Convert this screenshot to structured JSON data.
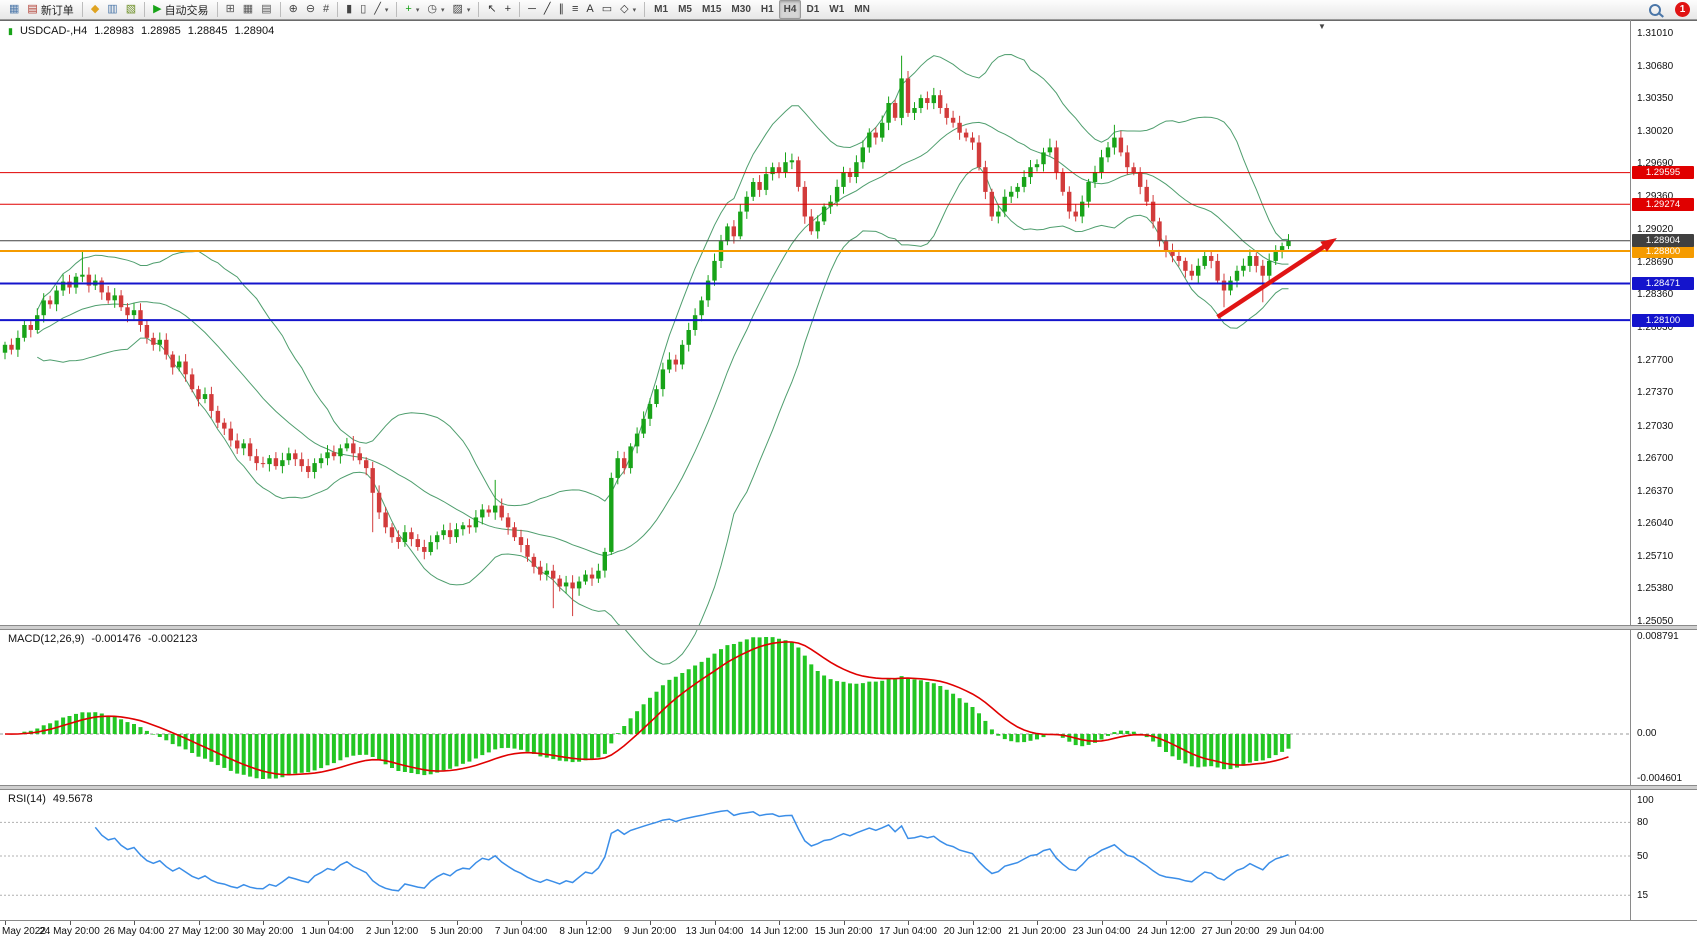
{
  "window": {
    "notification_count": "1"
  },
  "toolbar": {
    "groups": [
      {
        "items": [
          {
            "name": "chart-window-icon",
            "glyph": "▦",
            "color": "#4A76A8"
          },
          {
            "name": "new-order-button",
            "glyph": "▤",
            "color": "#B0392E",
            "label": "新订单"
          }
        ]
      },
      {
        "items": [
          {
            "name": "metaeditor-icon",
            "glyph": "◆",
            "color": "#DFA321"
          },
          {
            "name": "market-watch-icon",
            "glyph": "▥",
            "color": "#4A76A8"
          },
          {
            "name": "strategy-navigator-icon",
            "glyph": "▧",
            "color": "#6B8E23"
          }
        ]
      },
      {
        "items": [
          {
            "name": "auto-trading-button",
            "glyph": "▶",
            "color": "#17A317",
            "label": "自动交易"
          }
        ]
      },
      {
        "items": [
          {
            "name": "new-chart-icon",
            "glyph": "⊞",
            "color": "#555555"
          },
          {
            "name": "chart-tile-icon",
            "glyph": "▦",
            "color": "#555555"
          },
          {
            "name": "chart-cascade-icon",
            "glyph": "▤",
            "color": "#555555"
          }
        ]
      },
      {
        "items": [
          {
            "name": "zoom-in-icon",
            "glyph": "⊕",
            "color": "#444444"
          },
          {
            "name": "zoom-out-icon",
            "glyph": "⊖",
            "color": "#444444"
          },
          {
            "name": "grid-icon",
            "glyph": "#",
            "color": "#444444"
          }
        ]
      },
      {
        "items": [
          {
            "name": "bar-chart-icon",
            "glyph": "▮",
            "color": "#444444"
          },
          {
            "name": "candlestick-chart-icon",
            "glyph": "▯",
            "color": "#444444"
          },
          {
            "name": "line-chart-icon",
            "glyph": "╱",
            "color": "#444444",
            "dropdown": true
          }
        ]
      },
      {
        "items": [
          {
            "name": "indicators-icon",
            "glyph": "+",
            "color": "#17A317",
            "dropdown": true
          },
          {
            "name": "periods-icon",
            "glyph": "◷",
            "color": "#444444",
            "dropdown": true
          },
          {
            "name": "templates-icon",
            "glyph": "▨",
            "color": "#444444",
            "dropdown": true
          }
        ]
      },
      {
        "items": [
          {
            "name": "cursor-icon",
            "glyph": "↖",
            "color": "#333333"
          },
          {
            "name": "crosshair-icon",
            "glyph": "+",
            "color": "#333333"
          }
        ]
      },
      {
        "items": [
          {
            "name": "horizontal-line-icon",
            "glyph": "─",
            "color": "#333333"
          },
          {
            "name": "trendline-icon",
            "glyph": "╱",
            "color": "#333333"
          },
          {
            "name": "channel-icon",
            "glyph": "∥",
            "color": "#333333"
          },
          {
            "name": "fibonacci-icon",
            "glyph": "≡",
            "color": "#333333"
          },
          {
            "name": "text-icon",
            "glyph": "A",
            "color": "#333333"
          },
          {
            "name": "label-icon",
            "glyph": "▭",
            "color": "#333333"
          },
          {
            "name": "shapes-icon",
            "glyph": "◇",
            "color": "#333333",
            "dropdown": true
          }
        ]
      },
      {
        "items": [
          {
            "name": "timeframe-m1-button",
            "label": "M1",
            "tf": true
          },
          {
            "name": "timeframe-m5-button",
            "label": "M5",
            "tf": true
          },
          {
            "name": "timeframe-m15-button",
            "label": "M15",
            "tf": true
          },
          {
            "name": "timeframe-m30-button",
            "label": "M30",
            "tf": true
          },
          {
            "name": "timeframe-h1-button",
            "label": "H1",
            "tf": true
          },
          {
            "name": "timeframe-h4-button",
            "label": "H4",
            "tf": true,
            "active": true
          },
          {
            "name": "timeframe-d1-button",
            "label": "D1",
            "tf": true
          },
          {
            "name": "timeframe-w1-button",
            "label": "W1",
            "tf": true
          },
          {
            "name": "timeframe-mn-button",
            "label": "MN",
            "tf": true
          }
        ]
      }
    ]
  },
  "chart": {
    "header": {
      "icon_glyph": "▮",
      "symbol_period": "USDCAD-,H4",
      "open": "1.28983",
      "high": "1.28985",
      "low": "1.28845",
      "close": "1.28904"
    },
    "shift_marker_glyph": "▼",
    "price_axis": [
      "1.31010",
      "1.30680",
      "1.30350",
      "1.30020",
      "1.29690",
      "1.29360",
      "1.29020",
      "1.28690",
      "1.28360",
      "1.28030",
      "1.27700",
      "1.27370",
      "1.27030",
      "1.26700",
      "1.26370",
      "1.26040",
      "1.25710",
      "1.25380",
      "1.25050"
    ],
    "colors": {
      "up": "#18A318",
      "down": "#D23B3B",
      "bollinger": "#4F9E6E",
      "arrow": "#E01414"
    }
  },
  "macd": {
    "name": "MACD(12,26,9)",
    "value_main": "-0.001476",
    "value_signal": "-0.002123",
    "scale": {
      "max": "0.008791",
      "zero": "0.00",
      "min": "-0.004601"
    },
    "colors": {
      "histogram": "#23C623",
      "signal": "#E00000"
    }
  },
  "rsi": {
    "name": "RSI(14)",
    "value": "49.5678",
    "color": "#3B8EE8",
    "scale_labels": [
      "100",
      "80",
      "50",
      "15"
    ],
    "levels": [
      80,
      50,
      15
    ]
  },
  "time_axis": {
    "labels": [
      "May 2022",
      "24 May 20:00",
      "26 May 04:00",
      "27 May 12:00",
      "30 May 20:00",
      "1 Jun 04:00",
      "2 Jun 12:00",
      "5 Jun 20:00",
      "7 Jun 04:00",
      "8 Jun 12:00",
      "9 Jun 20:00",
      "13 Jun 04:00",
      "14 Jun 12:00",
      "15 Jun 20:00",
      "17 Jun 04:00",
      "20 Jun 12:00",
      "21 Jun 20:00",
      "23 Jun 04:00",
      "24 Jun 12:00",
      "27 Jun 20:00",
      "29 Jun 04:00"
    ]
  },
  "chart_data": {
    "type": "candlestick",
    "symbol": "USDCAD",
    "timeframe": "H4",
    "y_range": [
      1.2505,
      1.3101
    ],
    "ohlc_current": {
      "open": 1.28983,
      "high": 1.28985,
      "low": 1.28845,
      "close": 1.28904
    },
    "closes": [
      1.2785,
      1.278,
      1.2792,
      1.2805,
      1.28,
      1.2815,
      1.283,
      1.2826,
      1.284,
      1.2849,
      1.2843,
      1.2854,
      1.2856,
      1.2845,
      1.285,
      1.2838,
      1.283,
      1.2835,
      1.2823,
      1.2815,
      1.282,
      1.2805,
      1.2792,
      1.2785,
      1.279,
      1.2775,
      1.2762,
      1.2768,
      1.2755,
      1.274,
      1.273,
      1.2735,
      1.2718,
      1.2706,
      1.27,
      1.2688,
      1.268,
      1.2685,
      1.2672,
      1.2665,
      1.2664,
      1.267,
      1.2662,
      1.2668,
      1.2675,
      1.2669,
      1.2662,
      1.2656,
      1.2665,
      1.267,
      1.2676,
      1.2672,
      1.268,
      1.2685,
      1.2675,
      1.2668,
      1.266,
      1.2635,
      1.2615,
      1.26,
      1.259,
      1.2585,
      1.2595,
      1.2588,
      1.258,
      1.2575,
      1.2585,
      1.2592,
      1.2597,
      1.259,
      1.2598,
      1.2602,
      1.26,
      1.261,
      1.2618,
      1.2615,
      1.2622,
      1.261,
      1.26,
      1.259,
      1.2582,
      1.257,
      1.256,
      1.2552,
      1.2556,
      1.2548,
      1.254,
      1.2544,
      1.2538,
      1.2545,
      1.2552,
      1.2548,
      1.2556,
      1.2575,
      1.265,
      1.267,
      1.266,
      1.2682,
      1.2695,
      1.271,
      1.2725,
      1.274,
      1.276,
      1.277,
      1.2765,
      1.2785,
      1.28,
      1.2815,
      1.283,
      1.285,
      1.287,
      1.289,
      1.2905,
      1.2895,
      1.292,
      1.2935,
      1.295,
      1.2942,
      1.2958,
      1.2965,
      1.296,
      1.297,
      1.2972,
      1.2945,
      1.2915,
      1.29,
      1.291,
      1.2925,
      1.293,
      1.2945,
      1.296,
      1.2955,
      1.297,
      1.2985,
      1.3,
      1.2995,
      1.301,
      1.303,
      1.3015,
      1.3055,
      1.302,
      1.3025,
      1.3035,
      1.303,
      1.3038,
      1.3025,
      1.3015,
      1.301,
      1.3,
      1.2995,
      1.299,
      1.2965,
      1.294,
      1.2915,
      1.292,
      1.2935,
      1.294,
      1.2945,
      1.2955,
      1.2965,
      1.2968,
      1.298,
      1.2985,
      1.296,
      1.294,
      1.292,
      1.2915,
      1.293,
      1.295,
      1.296,
      1.2975,
      1.2985,
      1.2995,
      1.298,
      1.2965,
      1.296,
      1.2945,
      1.293,
      1.291,
      1.289,
      1.288,
      1.2875,
      1.287,
      1.286,
      1.2855,
      1.2865,
      1.2875,
      1.287,
      1.285,
      1.284,
      1.285,
      1.286,
      1.2865,
      1.2875,
      1.2865,
      1.2855,
      1.287,
      1.288,
      1.2885,
      1.28904
    ],
    "spikes": {
      "12": {
        "h": 1.2881
      },
      "57": {
        "l": 1.2595
      },
      "76": {
        "h": 1.2648
      },
      "85": {
        "l": 1.2518
      },
      "88": {
        "l": 1.251
      },
      "94": {
        "l": 1.2572
      },
      "121": {
        "h": 1.298
      },
      "139": {
        "h": 1.3078
      },
      "162": {
        "h": 1.2994
      },
      "172": {
        "h": 1.3008
      },
      "189": {
        "l": 1.2823
      },
      "195": {
        "l": 1.2828
      }
    },
    "levels": [
      {
        "name": "resistance-upper",
        "price": 1.29595,
        "label": "1.29595",
        "color": "#E00000",
        "width": 1
      },
      {
        "name": "resistance-lower",
        "price": 1.29274,
        "label": "1.29274",
        "color": "#E00000",
        "width": 1
      },
      {
        "name": "pivot-line",
        "price": 1.288,
        "label": "1.28800",
        "color": "#F59B00",
        "width": 2
      },
      {
        "name": "current-price",
        "price": 1.28904,
        "label": "1.28904",
        "color": "#404040",
        "width": 1
      },
      {
        "name": "support-upper",
        "price": 1.28471,
        "label": "1.28471",
        "color": "#1414CC",
        "width": 2
      },
      {
        "name": "support-lower",
        "price": 1.281,
        "label": "1.28100",
        "color": "#1414CC",
        "width": 2
      }
    ],
    "arrow": {
      "from_bar": 188,
      "from_price": 1.28131,
      "to_bar": 206.5,
      "to_price": 1.28932
    },
    "indicators": {
      "bollinger": {
        "period": 20,
        "deviation": 2
      },
      "macd": {
        "fast": 12,
        "slow": 26,
        "signal": 9,
        "values": [
          -0.001476,
          -0.002123
        ],
        "y_range": [
          -0.004601,
          0.008791
        ]
      },
      "rsi": {
        "period": 14,
        "value": 49.5678,
        "levels": [
          80,
          50,
          15
        ]
      }
    }
  }
}
